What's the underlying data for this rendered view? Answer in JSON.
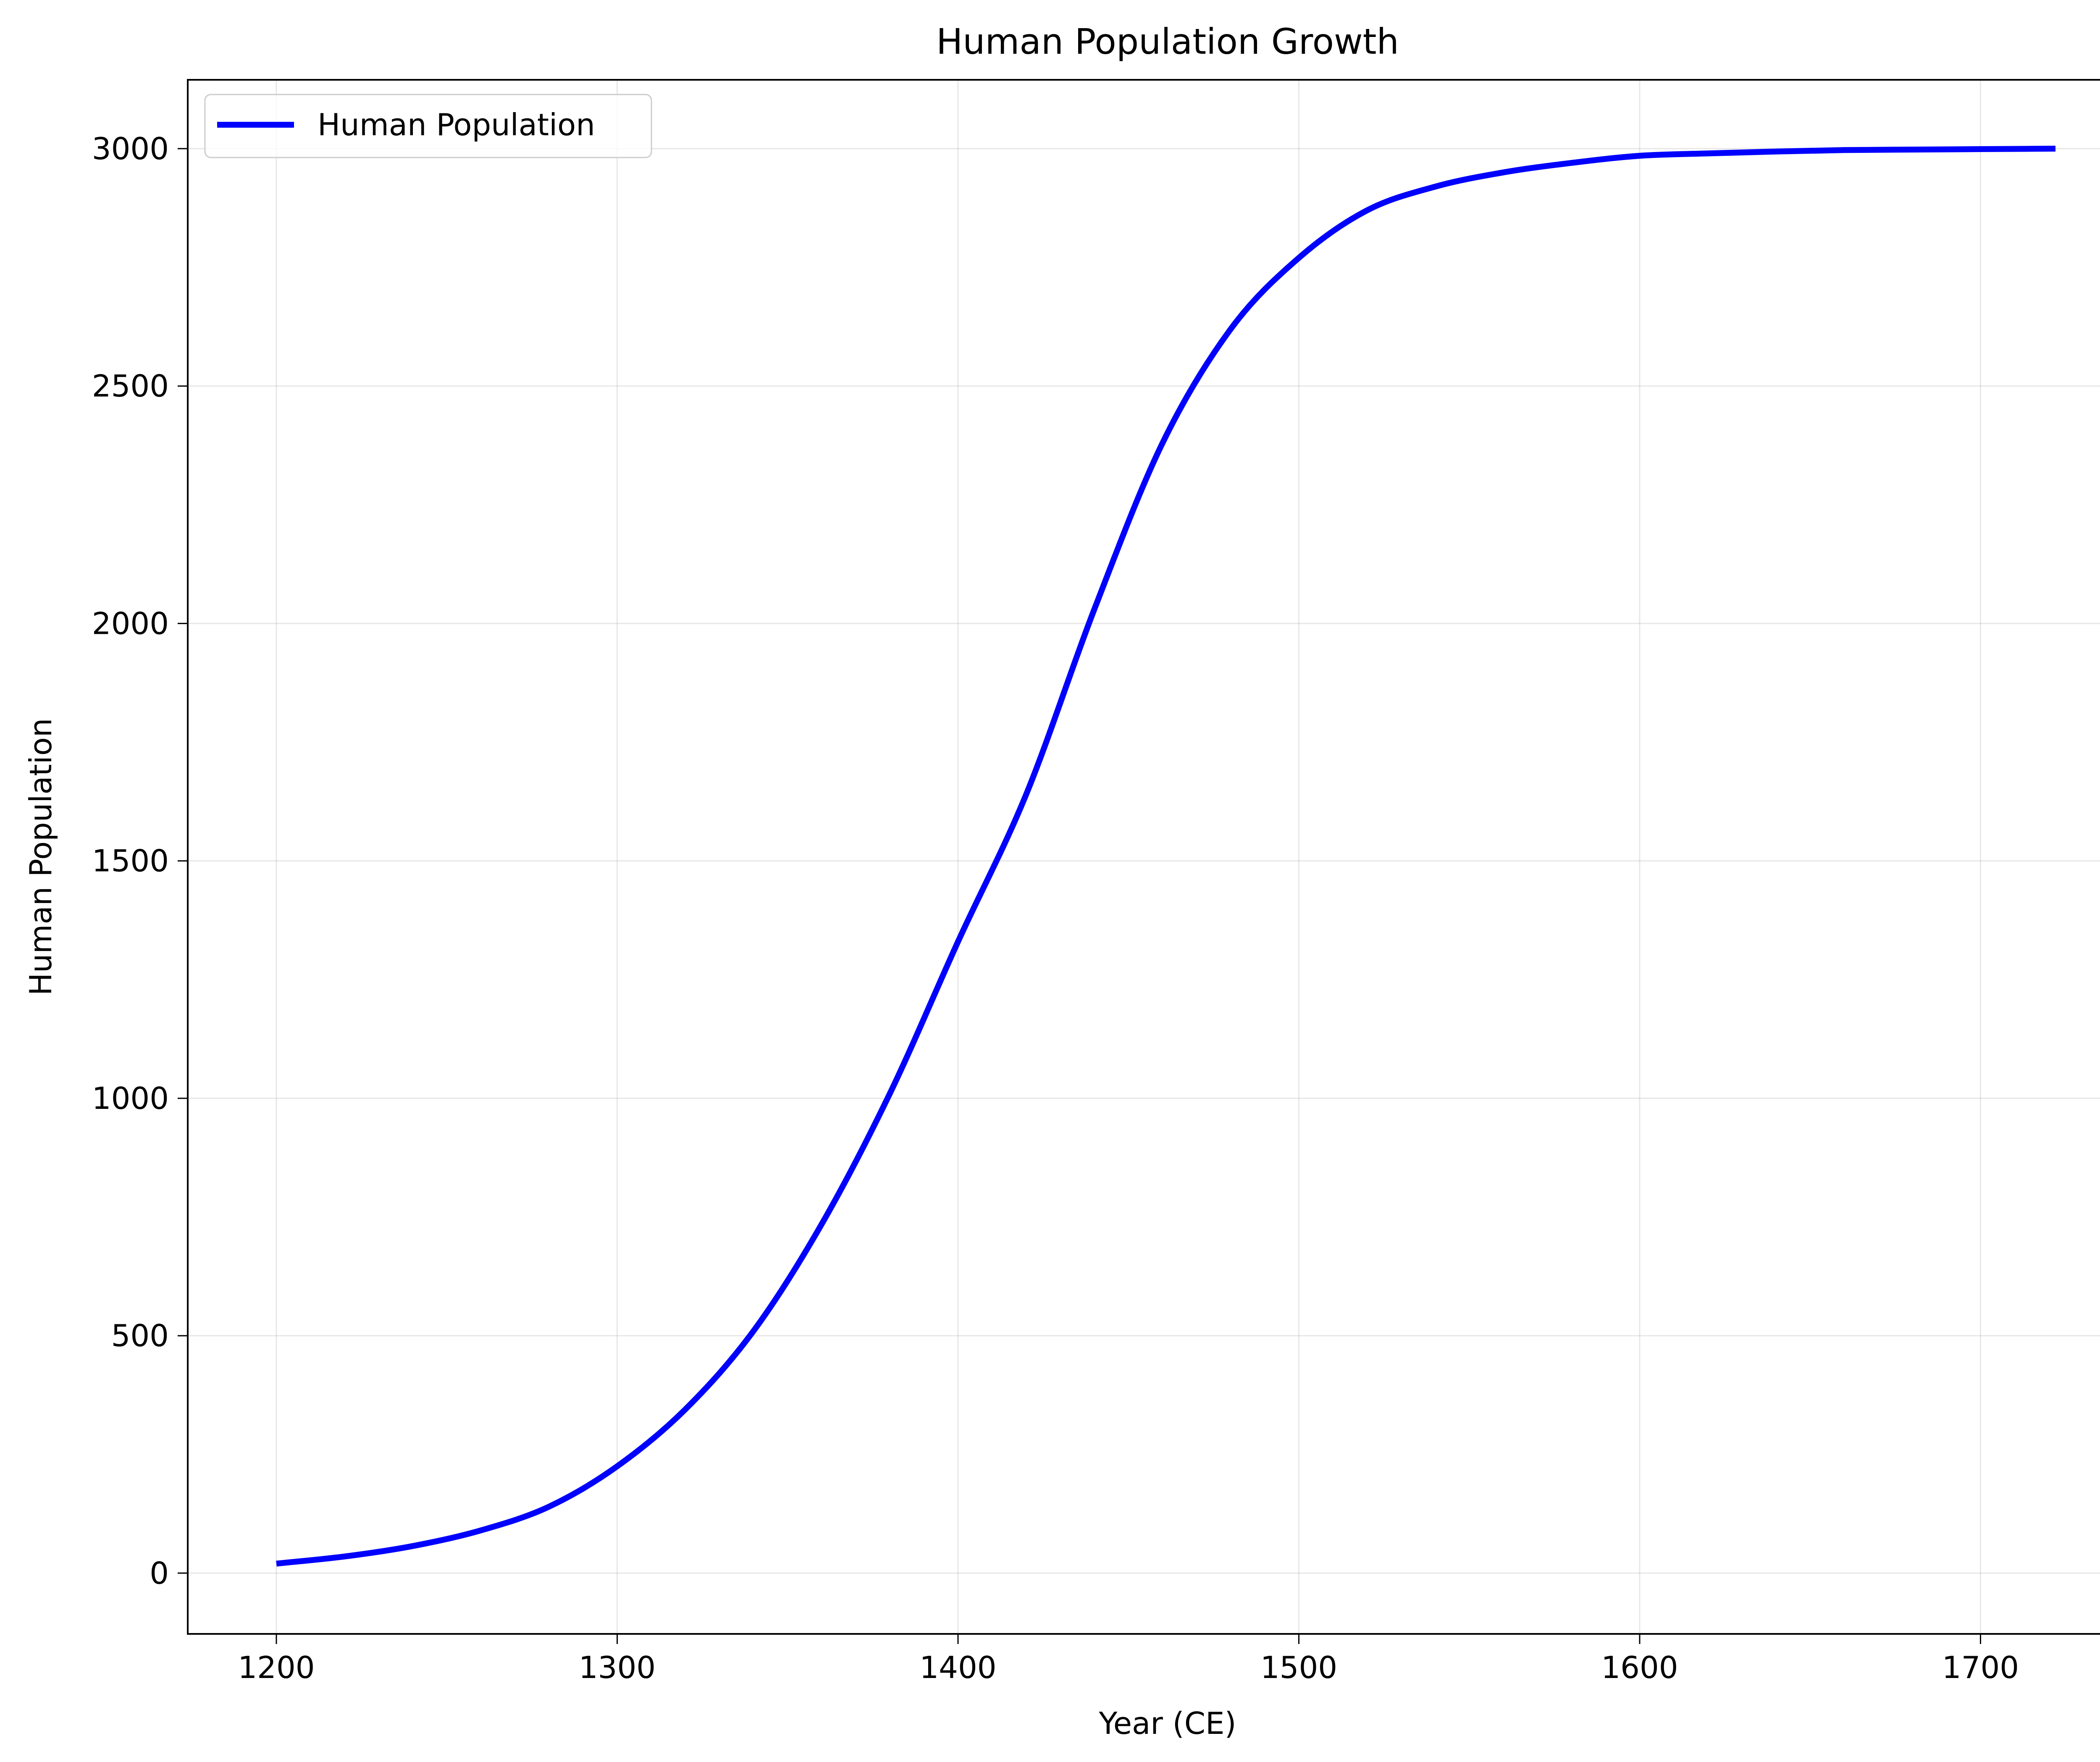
{
  "chart_data": {
    "type": "line",
    "title": "Human Population Growth",
    "xlabel": "Year (CE)",
    "ylabel": "Human Population",
    "xlim": [
      1174,
      1748
    ],
    "ylim": [
      -128,
      3145
    ],
    "xticks": [
      1200,
      1300,
      1400,
      1500,
      1600,
      1700
    ],
    "yticks": [
      0,
      500,
      1000,
      1500,
      2000,
      2500,
      3000
    ],
    "grid": true,
    "legend_position": "upper-left",
    "series": [
      {
        "name": "Human Population",
        "color": "#0000ff",
        "x": [
          1200,
          1220,
          1240,
          1260,
          1280,
          1300,
          1320,
          1340,
          1360,
          1380,
          1400,
          1420,
          1440,
          1460,
          1480,
          1500,
          1520,
          1540,
          1560,
          1580,
          1600,
          1620,
          1640,
          1660,
          1680,
          1700,
          1722
        ],
        "y": [
          20,
          35,
          57,
          90,
          140,
          225,
          345,
          510,
          735,
          1010,
          1330,
          1640,
          2030,
          2380,
          2620,
          2770,
          2870,
          2920,
          2950,
          2970,
          2985,
          2990,
          2994,
          2997,
          2998,
          2999,
          3000
        ]
      }
    ]
  }
}
